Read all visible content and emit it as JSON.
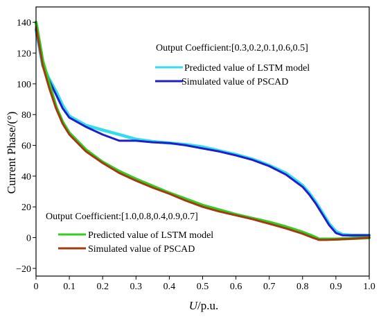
{
  "chart_data": {
    "type": "line",
    "xlabel_italic": "U",
    "xlabel_rest": "/p.u.",
    "ylabel": "Current Phase/(°)",
    "xlim": [
      0,
      1.0
    ],
    "ylim": [
      -25,
      150
    ],
    "xticks": [
      0,
      0.1,
      0.2,
      0.3,
      0.4,
      0.5,
      0.6,
      0.7,
      0.8,
      0.9,
      1.0
    ],
    "xtick_labels": [
      "0",
      "0.1",
      "0.2",
      "0.3",
      "0.4",
      "0.5",
      "0.6",
      "0.7",
      "0.8",
      "0.9",
      "1.0"
    ],
    "yticks": [
      -20,
      0,
      20,
      40,
      60,
      80,
      100,
      120,
      140
    ],
    "ytick_labels": [
      "−20",
      "0",
      "20",
      "40",
      "60",
      "80",
      "100",
      "120",
      "140"
    ],
    "grid": false,
    "groups": [
      {
        "annotation": "Output Coefficient:[0.3,0.2,0.1,0.6,0.5]",
        "series": [
          {
            "name": "Predicted value of LSTM model",
            "color": "#33ddee",
            "x": [
              0,
              0.02,
              0.04,
              0.06,
              0.08,
              0.1,
              0.15,
              0.2,
              0.25,
              0.3,
              0.35,
              0.4,
              0.45,
              0.5,
              0.55,
              0.6,
              0.65,
              0.7,
              0.75,
              0.8,
              0.82,
              0.84,
              0.86,
              0.88,
              0.9,
              0.92,
              0.95,
              1.0
            ],
            "y": [
              135,
              112,
              103,
              95,
              86,
              79,
              73,
              70,
              67,
              64,
              62.5,
              61.5,
              60.5,
              59,
              56.5,
              54,
              51,
              47,
              42,
              34,
              29,
              23,
              16,
              9,
              4,
              2,
              1.5,
              1.5
            ]
          },
          {
            "name": "Simulated value of PSCAD",
            "color": "#1f1fc9",
            "x": [
              0,
              0.02,
              0.04,
              0.06,
              0.08,
              0.1,
              0.15,
              0.2,
              0.25,
              0.3,
              0.35,
              0.4,
              0.45,
              0.5,
              0.55,
              0.6,
              0.65,
              0.7,
              0.75,
              0.8,
              0.82,
              0.84,
              0.86,
              0.88,
              0.9,
              0.92,
              0.95,
              1.0
            ],
            "y": [
              136,
              113,
              102,
              93,
              84,
              78,
              72,
              67,
              63,
              63,
              62,
              61.5,
              60,
              58,
              56,
              53.5,
              50.5,
              46.5,
              41,
              33,
              28,
              22,
              15,
              8,
              3,
              1.5,
              1.5,
              1.5
            ]
          }
        ]
      },
      {
        "annotation": "Output Coefficient:[1.0,0.8,0.4,0.9,0.7]",
        "series": [
          {
            "name": "Predicted value of LSTM model",
            "color": "#33cc22",
            "x": [
              0,
              0.02,
              0.04,
              0.06,
              0.08,
              0.1,
              0.15,
              0.2,
              0.25,
              0.3,
              0.35,
              0.4,
              0.45,
              0.5,
              0.55,
              0.6,
              0.65,
              0.7,
              0.75,
              0.8,
              0.83,
              0.85,
              0.87,
              0.9,
              0.95,
              1.0
            ],
            "y": [
              140,
              115,
              100,
              85,
              75,
              68,
              57,
              49,
              43,
              38,
              33.5,
              29,
              25,
              21,
              18,
              15,
              12.5,
              10,
              7,
              3.5,
              1,
              -1,
              -1,
              -1,
              -0.5,
              0
            ]
          },
          {
            "name": "Simulated value of PSCAD",
            "color": "#a33a12",
            "x": [
              0,
              0.02,
              0.04,
              0.06,
              0.08,
              0.1,
              0.15,
              0.2,
              0.25,
              0.3,
              0.35,
              0.4,
              0.45,
              0.5,
              0.55,
              0.6,
              0.65,
              0.7,
              0.75,
              0.8,
              0.83,
              0.85,
              0.87,
              0.9,
              0.95,
              1.0
            ],
            "y": [
              137,
              112,
              97,
              84,
              74,
              67,
              56,
              48.5,
              42,
              37,
              32.5,
              28.5,
              24,
              20,
              17,
              14.5,
              12,
              9,
              6,
              2.5,
              0,
              -1.5,
              -1.5,
              -1.2,
              -0.7,
              0
            ]
          }
        ]
      }
    ]
  }
}
